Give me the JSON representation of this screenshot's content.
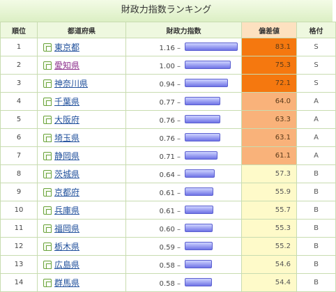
{
  "title": "財政力指数ランキング",
  "headers": {
    "rank": "順位",
    "prefecture": "都道府県",
    "index": "財政力指数",
    "score": "偏差値",
    "grade": "格付"
  },
  "colors": {
    "bar": "#6f73e6",
    "score_S": "#f5780f",
    "score_A": "#f9b27a",
    "score_B": "#fefac9",
    "score_header": "#fde1c0"
  },
  "rows": [
    {
      "rank": "1",
      "prefecture": "東京都",
      "visited": false,
      "index": "1.16 –",
      "index_value": 1.16,
      "score": "83.1",
      "grade": "S"
    },
    {
      "rank": "2",
      "prefecture": "愛知県",
      "visited": true,
      "index": "1.00 –",
      "index_value": 1.0,
      "score": "75.3",
      "grade": "S"
    },
    {
      "rank": "3",
      "prefecture": "神奈川県",
      "visited": false,
      "index": "0.94 –",
      "index_value": 0.94,
      "score": "72.1",
      "grade": "S"
    },
    {
      "rank": "4",
      "prefecture": "千葉県",
      "visited": false,
      "index": "0.77 –",
      "index_value": 0.77,
      "score": "64.0",
      "grade": "A"
    },
    {
      "rank": "5",
      "prefecture": "大阪府",
      "visited": false,
      "index": "0.76 –",
      "index_value": 0.76,
      "score": "63.3",
      "grade": "A"
    },
    {
      "rank": "6",
      "prefecture": "埼玉県",
      "visited": false,
      "index": "0.76 –",
      "index_value": 0.76,
      "score": "63.1",
      "grade": "A"
    },
    {
      "rank": "7",
      "prefecture": "静岡県",
      "visited": false,
      "index": "0.71 –",
      "index_value": 0.71,
      "score": "61.1",
      "grade": "A"
    },
    {
      "rank": "8",
      "prefecture": "茨城県",
      "visited": false,
      "index": "0.64 –",
      "index_value": 0.64,
      "score": "57.3",
      "grade": "B"
    },
    {
      "rank": "9",
      "prefecture": "京都府",
      "visited": false,
      "index": "0.61 –",
      "index_value": 0.61,
      "score": "55.9",
      "grade": "B"
    },
    {
      "rank": "10",
      "prefecture": "兵庫県",
      "visited": false,
      "index": "0.61 –",
      "index_value": 0.61,
      "score": "55.7",
      "grade": "B"
    },
    {
      "rank": "11",
      "prefecture": "福岡県",
      "visited": false,
      "index": "0.60 –",
      "index_value": 0.6,
      "score": "55.3",
      "grade": "B"
    },
    {
      "rank": "12",
      "prefecture": "栃木県",
      "visited": false,
      "index": "0.59 –",
      "index_value": 0.59,
      "score": "55.2",
      "grade": "B"
    },
    {
      "rank": "13",
      "prefecture": "広島県",
      "visited": false,
      "index": "0.58 –",
      "index_value": 0.58,
      "score": "54.6",
      "grade": "B"
    },
    {
      "rank": "14",
      "prefecture": "群馬県",
      "visited": false,
      "index": "0.58 –",
      "index_value": 0.58,
      "score": "54.4",
      "grade": "B"
    }
  ]
}
